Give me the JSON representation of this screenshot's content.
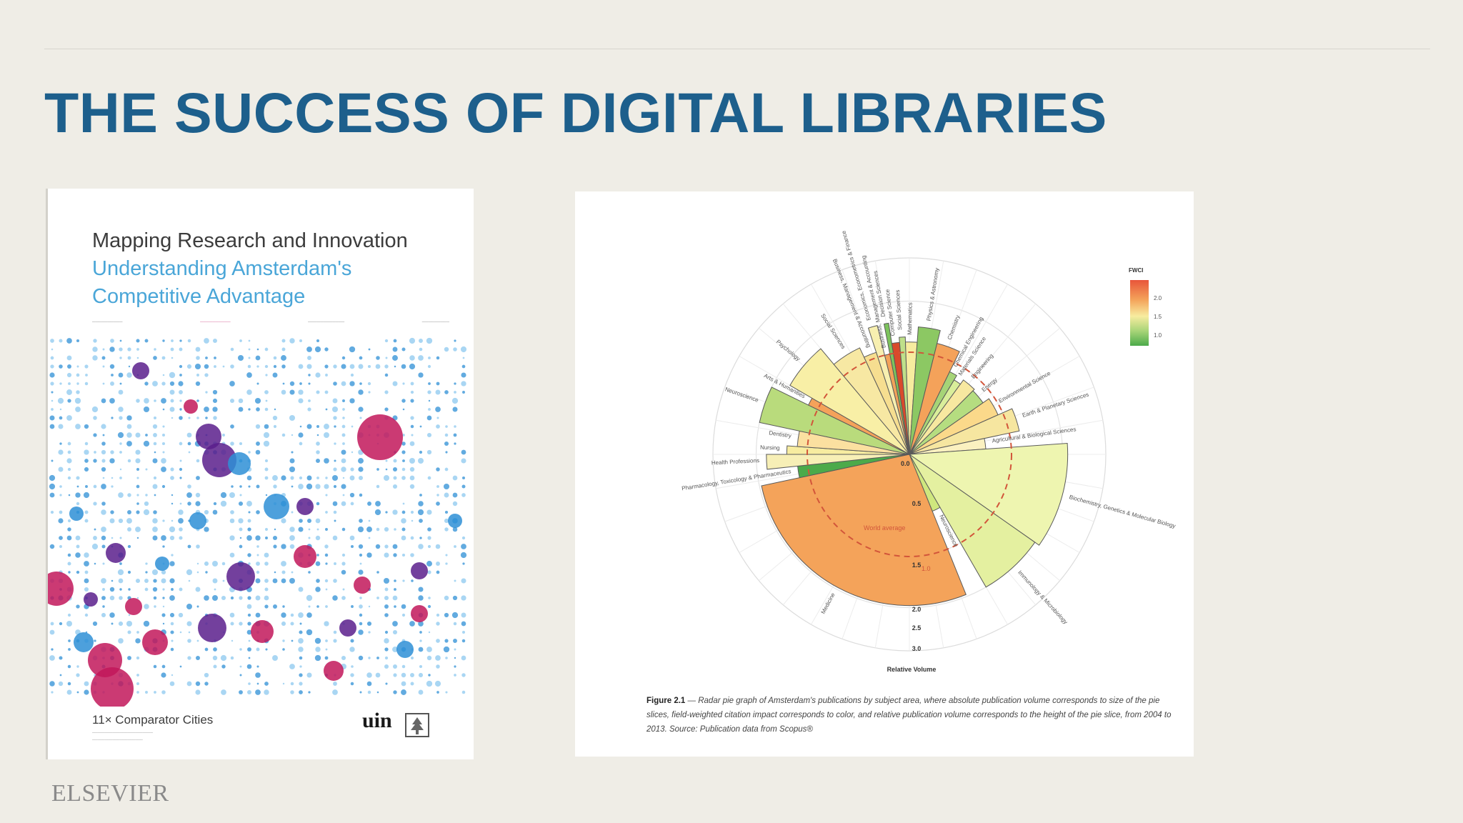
{
  "slide": {
    "title": "THE SUCCESS OF DIGITAL LIBRARIES",
    "footer_logo": "ELSEVIER"
  },
  "book": {
    "title": "Mapping Research and Innovation",
    "subtitle_line1": "Understanding Amsterdam's",
    "subtitle_line2": "Competitive Advantage",
    "footer": "11× Comparator Cities",
    "logo": "uin",
    "colors": {
      "magenta": "#c2185b",
      "purple": "#5a1e8c",
      "blue": "#2e8fd6",
      "light_blue": "#8cc8ef"
    }
  },
  "figure": {
    "caption_label": "Figure 2.1",
    "caption_text": " — Radar pie graph of Amsterdam's publications by subject area, where absolute publication volume corresponds to size of the pie slices, field-weighted citation impact corresponds to color, and relative publication volume corresponds to the height of the pie slice, from 2004 to 2013. Source: Publication data from Scopus®",
    "legend_title": "FWCI",
    "legend_ticks": [
      "2.0",
      "1.5",
      "1.0"
    ],
    "world_average_label": "World average",
    "axis_title": "Relative Volume",
    "center_label": "0.0",
    "radial_ticks": [
      "0.5",
      "1.0",
      "1.5",
      "2.0",
      "2.5",
      "3.0"
    ],
    "world_average_tick": "1.0",
    "subjects": [
      {
        "label": "Economics, Econometrics & Finance",
        "start": -18,
        "end": -14,
        "r": 1.3,
        "color": "#f7efb0"
      },
      {
        "label": "Business, Management & Accounting",
        "start": -14,
        "end": -11,
        "r": 1.0,
        "color": "#f2a25a"
      },
      {
        "label": "Decision Sciences",
        "start": -11,
        "end": -9,
        "r": 1.3,
        "color": "#7cc35c"
      },
      {
        "label": "Computer Science",
        "start": -9,
        "end": -5,
        "r": 1.1,
        "color": "#d94a2b"
      },
      {
        "label": "Social Sciences",
        "start": -5,
        "end": -2,
        "r": 1.15,
        "color": "#bfe08a"
      },
      {
        "label": "Mathematics",
        "start": -2,
        "end": 4,
        "r": 1.1,
        "color": "#f7ec9f"
      },
      {
        "label": "Physics & Astronomy",
        "start": 4,
        "end": 14,
        "r": 1.25,
        "color": "#8cc863"
      },
      {
        "label": "Chemistry",
        "start": 14,
        "end": 26,
        "r": 1.12,
        "color": "#f4a25a"
      },
      {
        "label": "Chemical Engineering",
        "start": 26,
        "end": 31,
        "r": 0.9,
        "color": "#a6d477"
      },
      {
        "label": "Materials Science",
        "start": 31,
        "end": 36,
        "r": 0.85,
        "color": "#d9ee9a"
      },
      {
        "label": "Engineering",
        "start": 36,
        "end": 45,
        "r": 0.9,
        "color": "#f7e8a0"
      },
      {
        "label": "Energy",
        "start": 45,
        "end": 55,
        "r": 0.88,
        "color": "#b5dd80"
      },
      {
        "label": "Environmental Science",
        "start": 55,
        "end": 66,
        "r": 0.95,
        "color": "#fbd98a"
      },
      {
        "label": "Earth & Planetary Sciences",
        "start": 66,
        "end": 78,
        "r": 1.1,
        "color": "#f6e6a0"
      },
      {
        "label": "Agricultural & Biological Sciences",
        "start": 78,
        "end": 86,
        "r": 0.75,
        "color": "#fbf1c0"
      },
      {
        "label": "Biochemistry, Genetics & Molecular Biology",
        "start": 86,
        "end": 125,
        "r": 1.55,
        "color": "#eef5b0"
      },
      {
        "label": "Immunology & Microbiology",
        "start": 125,
        "end": 150,
        "r": 1.5,
        "color": "#e4f0a0"
      },
      {
        "label": "Neuroscience",
        "start": 150,
        "end": 158,
        "r": 0.6,
        "color": "#cfe77e"
      },
      {
        "label": "Medicine",
        "start": 158,
        "end": 258,
        "r": 1.48,
        "color": "#f4a35a"
      },
      {
        "label": "Pharmacology, Toxicology & Pharmaceutics",
        "start": 258,
        "end": 264,
        "r": 1.1,
        "color": "#4caa4a"
      },
      {
        "label": "Health Professions",
        "start": 264,
        "end": 270,
        "r": 1.4,
        "color": "#f7efb6"
      },
      {
        "label": "Nursing",
        "start": 270,
        "end": 274,
        "r": 1.2,
        "color": "#f7eca0"
      },
      {
        "label": "Dentistry",
        "start": 274,
        "end": 282,
        "r": 1.1,
        "color": "#fbe0a0"
      },
      {
        "label": "Neuroscience",
        "start": 282,
        "end": 296,
        "r": 1.5,
        "color": "#b9db7c"
      },
      {
        "label": "Arts & Humanities",
        "start": 296,
        "end": 300,
        "r": 1.1,
        "color": "#f4a25a"
      },
      {
        "label": "Psychology",
        "start": 300,
        "end": 320,
        "r": 1.35,
        "color": "#f8efa6"
      },
      {
        "label": "Social Sciences",
        "start": 320,
        "end": 335,
        "r": 1.15,
        "color": "#f7e8a3"
      },
      {
        "label": "Business, Management & Accounting",
        "start": 335,
        "end": 342,
        "r": 1.05,
        "color": "#f6de90"
      }
    ]
  }
}
